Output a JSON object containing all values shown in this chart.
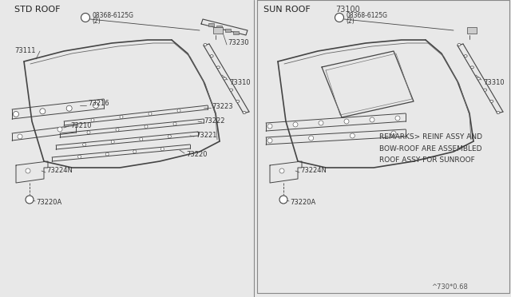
{
  "bg_color": "#f0f0f0",
  "left_label": "STD ROOF",
  "right_label": "SUN ROOF",
  "right_part_number": "73100",
  "remarks": "REMARKS> REINF ASSY AND\nBOW-ROOF ARE ASSEMBLED\nROOF ASSY FOR SUNROOF",
  "footer": "^730*0.68",
  "text_color": "#333333",
  "line_color": "#444444"
}
